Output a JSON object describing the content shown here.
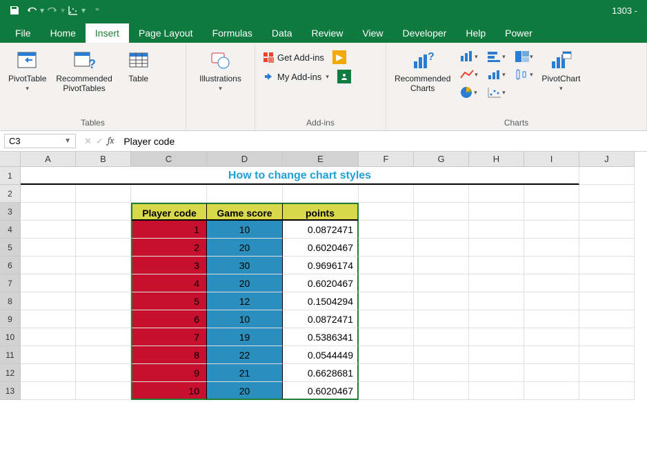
{
  "title_right": "1303 -",
  "qat": {
    "save": "save-icon",
    "undo": "undo-icon",
    "redo": "redo-icon",
    "chart": "chart-icon"
  },
  "tabs": [
    "File",
    "Home",
    "Insert",
    "Page Layout",
    "Formulas",
    "Data",
    "Review",
    "View",
    "Developer",
    "Help",
    "Power"
  ],
  "active_tab_index": 2,
  "ribbon": {
    "tables": {
      "label": "Tables",
      "pivot": "PivotTable",
      "recpivot_l1": "Recommended",
      "recpivot_l2": "PivotTables",
      "table": "Table"
    },
    "illustrations": {
      "label": "Illustrations",
      "btn": "Illustrations"
    },
    "addins": {
      "label": "Add-ins",
      "get": "Get Add-ins",
      "my": "My Add-ins"
    },
    "charts": {
      "label": "Charts",
      "rec_l1": "Recommended",
      "rec_l2": "Charts",
      "pivotchart": "PivotChart"
    }
  },
  "namebox": "C3",
  "formula": "Player code",
  "columns": [
    "A",
    "B",
    "C",
    "D",
    "E",
    "F",
    "G",
    "H",
    "I",
    "J"
  ],
  "merged_title": "How to change chart styles",
  "table": {
    "header_bg": "#d8d84a",
    "code_bg": "#c8102e",
    "score_bg": "#2a8fbd",
    "points_bg": "#ffffff",
    "headers": [
      "Player code",
      "Game score",
      "points"
    ],
    "rows": [
      {
        "code": "1",
        "score": "10",
        "points": "0.0872471"
      },
      {
        "code": "2",
        "score": "20",
        "points": "0.6020467"
      },
      {
        "code": "3",
        "score": "30",
        "points": "0.9696174"
      },
      {
        "code": "4",
        "score": "20",
        "points": "0.6020467"
      },
      {
        "code": "5",
        "score": "12",
        "points": "0.1504294"
      },
      {
        "code": "6",
        "score": "10",
        "points": "0.0872471"
      },
      {
        "code": "7",
        "score": "19",
        "points": "0.5386341"
      },
      {
        "code": "8",
        "score": "22",
        "points": "0.0544449"
      },
      {
        "code": "9",
        "score": "21",
        "points": "0.6628681"
      },
      {
        "code": "10",
        "score": "20",
        "points": "0.6020467"
      }
    ]
  },
  "row_count": 13
}
